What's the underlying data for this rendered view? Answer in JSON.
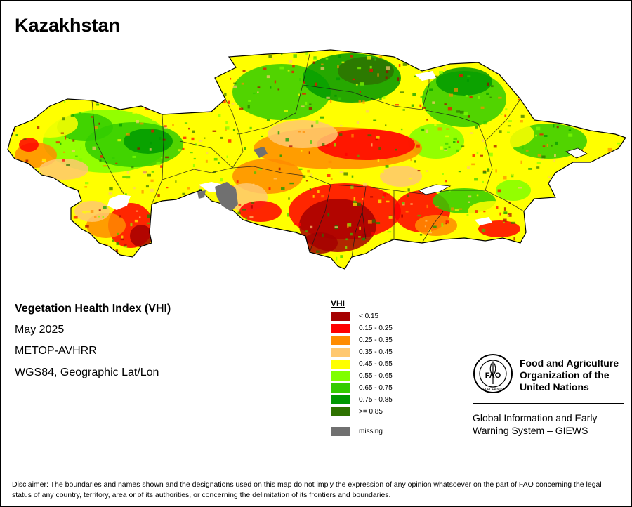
{
  "map": {
    "title": "Kazakhstan"
  },
  "info": {
    "title": "Vegetation Health Index (VHI)",
    "period": "May 2025",
    "sensor": "METOP-AVHRR",
    "projection": "WGS84, Geographic Lat/Lon"
  },
  "legend": {
    "title": "VHI",
    "items": [
      {
        "label": "< 0.15",
        "color": "#a50000"
      },
      {
        "label": "0.15 - 0.25",
        "color": "#ff0000"
      },
      {
        "label": "0.25 - 0.35",
        "color": "#ff8c00"
      },
      {
        "label": "0.35 - 0.45",
        "color": "#ffc870"
      },
      {
        "label": "0.45 - 0.55",
        "color": "#ffff00"
      },
      {
        "label": "0.55 - 0.65",
        "color": "#80ff00"
      },
      {
        "label": "0.65 - 0.75",
        "color": "#33cc00"
      },
      {
        "label": "0.75 - 0.85",
        "color": "#009900"
      },
      {
        "label": ">= 0.85",
        "color": "#2e7200"
      }
    ],
    "missing": {
      "label": "missing",
      "color": "#707070"
    }
  },
  "organization": {
    "emblem_letters": "FAO",
    "emblem_motto": "FIAT PANIS",
    "name_line1": "Food and Agriculture",
    "name_line2": "Organization of the",
    "name_line3": "United Nations",
    "program_line1": "Global Information and Early",
    "program_line2": "Warning System – GIEWS"
  },
  "disclaimer": "Disclaimer: The boundaries and names shown and the designations used on this map do not imply the expression of any opinion whatsoever on the part of FAO concerning the legal status of any country, territory, area or of its authorities, or concerning the delimitation of its frontiers and boundaries."
}
